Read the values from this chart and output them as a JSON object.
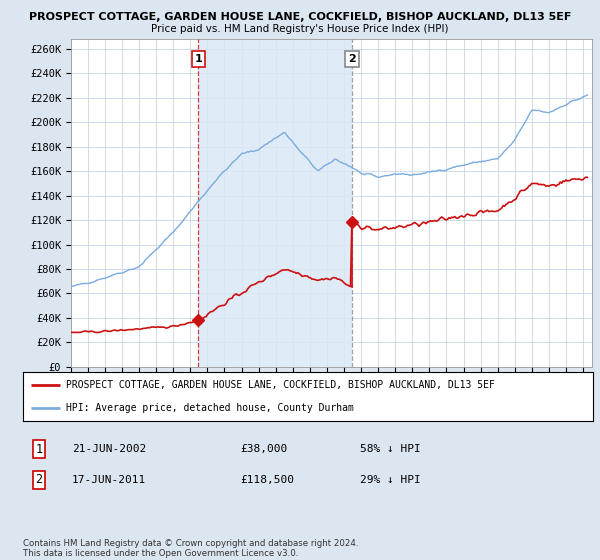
{
  "title1": "PROSPECT COTTAGE, GARDEN HOUSE LANE, COCKFIELD, BISHOP AUCKLAND, DL13 5EF",
  "title2": "Price paid vs. HM Land Registry's House Price Index (HPI)",
  "ylabel_ticks": [
    "£0",
    "£20K",
    "£40K",
    "£60K",
    "£80K",
    "£100K",
    "£120K",
    "£140K",
    "£160K",
    "£180K",
    "£200K",
    "£220K",
    "£240K",
    "£260K"
  ],
  "ytick_vals": [
    0,
    20000,
    40000,
    60000,
    80000,
    100000,
    120000,
    140000,
    160000,
    180000,
    200000,
    220000,
    240000,
    260000
  ],
  "ylim": [
    0,
    268000
  ],
  "xlim_start": 1995.0,
  "xlim_end": 2025.5,
  "hpi_color": "#7aacde",
  "price_color": "#cc1111",
  "bg_color": "#dce6f1",
  "plot_bg": "#ffffff",
  "shaded_color": "#dae8f5",
  "grid_color": "#c8d4e8",
  "purchase1_x": 2002.47,
  "purchase1_y": 38000,
  "purchase2_x": 2011.46,
  "purchase2_y": 118500,
  "legend_line1": "PROSPECT COTTAGE, GARDEN HOUSE LANE, COCKFIELD, BISHOP AUCKLAND, DL13 5EF",
  "legend_line2": "HPI: Average price, detached house, County Durham",
  "table_row1_num": "1",
  "table_row1_date": "21-JUN-2002",
  "table_row1_price": "£38,000",
  "table_row1_hpi": "58% ↓ HPI",
  "table_row2_num": "2",
  "table_row2_date": "17-JUN-2011",
  "table_row2_price": "£118,500",
  "table_row2_hpi": "29% ↓ HPI",
  "footer": "Contains HM Land Registry data © Crown copyright and database right 2024.\nThis data is licensed under the Open Government Licence v3.0.",
  "dashed_x1": 2002.47,
  "dashed_x2": 2011.46
}
